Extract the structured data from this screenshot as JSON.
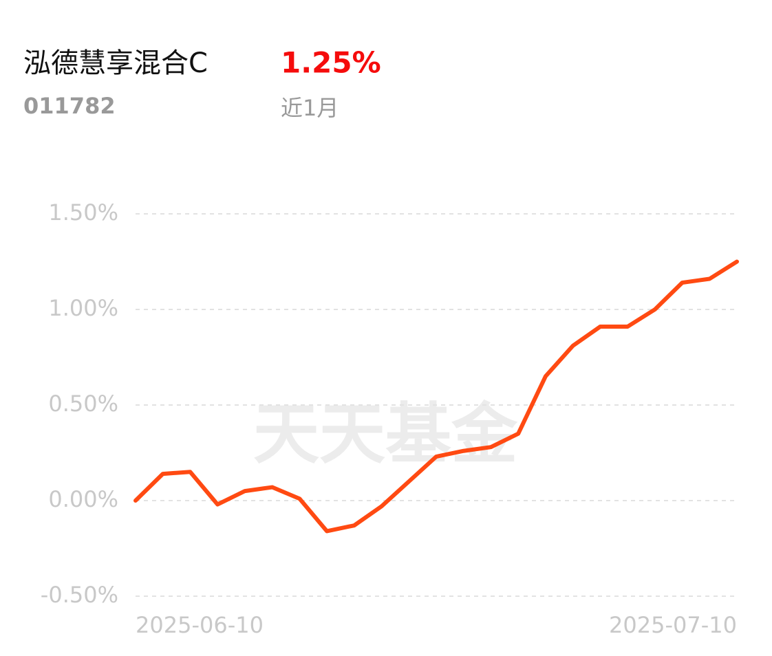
{
  "header": {
    "title": "泓德慧享混合C",
    "code": "011782",
    "return": "1.25%",
    "period": "近1月"
  },
  "watermark": "天天基金",
  "chart_data": {
    "type": "line",
    "categories": [
      "2025-06-10",
      null,
      null,
      null,
      null,
      null,
      null,
      null,
      null,
      null,
      null,
      null,
      null,
      null,
      null,
      null,
      null,
      null,
      null,
      null,
      null,
      null,
      "2025-07-10"
    ],
    "series": [
      {
        "name": "泓德慧享混合C",
        "color": "#ff4a12",
        "values": [
          0.0,
          0.14,
          0.15,
          -0.02,
          0.05,
          0.07,
          0.01,
          -0.16,
          -0.13,
          -0.03,
          0.1,
          0.23,
          0.26,
          0.28,
          0.35,
          0.65,
          0.81,
          0.91,
          0.91,
          1.0,
          1.14,
          1.16,
          1.25
        ]
      }
    ],
    "ylim": [
      -0.5,
      1.5
    ],
    "yticks": [
      {
        "value": 1.5,
        "label": "1.50%"
      },
      {
        "value": 1,
        "label": "1.00%"
      },
      {
        "value": 0.5,
        "label": "0.50%"
      },
      {
        "value": 0,
        "label": "0.00%"
      },
      {
        "value": -0.5,
        "label": "-0.50%"
      }
    ],
    "grid": true
  }
}
